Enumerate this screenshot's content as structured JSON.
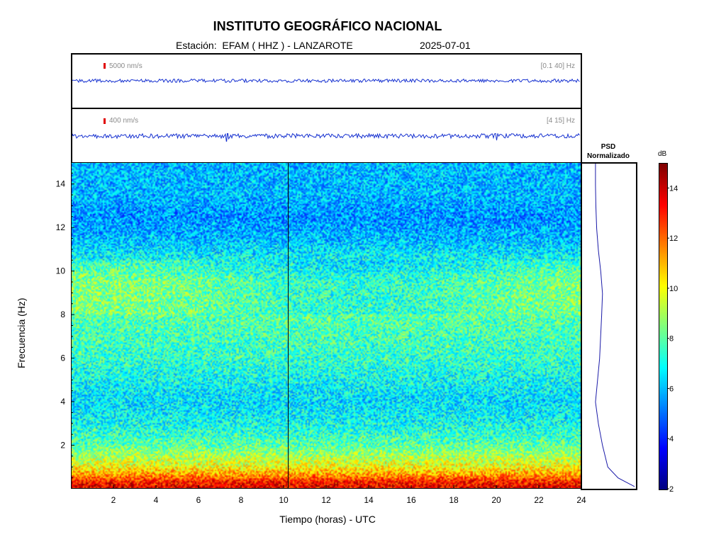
{
  "header": {
    "title": "INSTITUTO GEOGRÁFICO NACIONAL",
    "station_line": "Estación:  EFAM ( HHZ ) - LANZAROTE",
    "date": "2025-07-01"
  },
  "traces": [
    {
      "scale_label": "5000 nm/s",
      "band_label": "[0.1 40] Hz"
    },
    {
      "scale_label": "400 nm/s",
      "band_label": "[4 15] Hz"
    }
  ],
  "psd": {
    "title_line1": "PSD",
    "title_line2": "Normalizado"
  },
  "colorbar": {
    "unit": "dB",
    "ticks": [
      2,
      4,
      6,
      8,
      10,
      12,
      14
    ],
    "range": [
      2,
      15
    ]
  },
  "chart_data": {
    "type": "heatmap",
    "xlabel": "Tiempo (horas) - UTC",
    "ylabel": "Frecuencia  (Hz)",
    "xlim": [
      0,
      24
    ],
    "ylim": [
      0,
      15
    ],
    "xticks": [
      2,
      4,
      6,
      8,
      10,
      12,
      14,
      16,
      18,
      20,
      22,
      24
    ],
    "yticks": [
      2,
      4,
      6,
      8,
      10,
      12,
      14
    ],
    "vertical_marker_hour": 10.2,
    "level_profile_db": [
      {
        "freq": 0.1,
        "db": 13.5
      },
      {
        "freq": 0.3,
        "db": 13.0
      },
      {
        "freq": 0.6,
        "db": 11.5
      },
      {
        "freq": 1.0,
        "db": 10.0
      },
      {
        "freq": 1.5,
        "db": 9.0
      },
      {
        "freq": 2.0,
        "db": 8.0
      },
      {
        "freq": 3.0,
        "db": 7.0
      },
      {
        "freq": 4.0,
        "db": 6.5
      },
      {
        "freq": 5.0,
        "db": 7.0
      },
      {
        "freq": 6.0,
        "db": 7.5
      },
      {
        "freq": 8.0,
        "db": 8.0
      },
      {
        "freq": 9.5,
        "db": 8.0
      },
      {
        "freq": 10.5,
        "db": 7.0
      },
      {
        "freq": 11.5,
        "db": 6.0
      },
      {
        "freq": 12.5,
        "db": 5.5
      },
      {
        "freq": 13.5,
        "db": 6.0
      },
      {
        "freq": 15.0,
        "db": 6.0
      }
    ],
    "psd_profile": [
      {
        "freq": 0.1,
        "value": 1.0
      },
      {
        "freq": 0.5,
        "value": 0.6
      },
      {
        "freq": 1.0,
        "value": 0.35
      },
      {
        "freq": 2.0,
        "value": 0.22
      },
      {
        "freq": 3.0,
        "value": 0.12
      },
      {
        "freq": 4.0,
        "value": 0.05
      },
      {
        "freq": 5.0,
        "value": 0.1
      },
      {
        "freq": 6.0,
        "value": 0.15
      },
      {
        "freq": 8.0,
        "value": 0.2
      },
      {
        "freq": 9.0,
        "value": 0.22
      },
      {
        "freq": 10.0,
        "value": 0.18
      },
      {
        "freq": 11.0,
        "value": 0.12
      },
      {
        "freq": 12.0,
        "value": 0.08
      },
      {
        "freq": 13.0,
        "value": 0.06
      },
      {
        "freq": 14.0,
        "value": 0.05
      },
      {
        "freq": 15.0,
        "value": 0.05
      }
    ]
  }
}
